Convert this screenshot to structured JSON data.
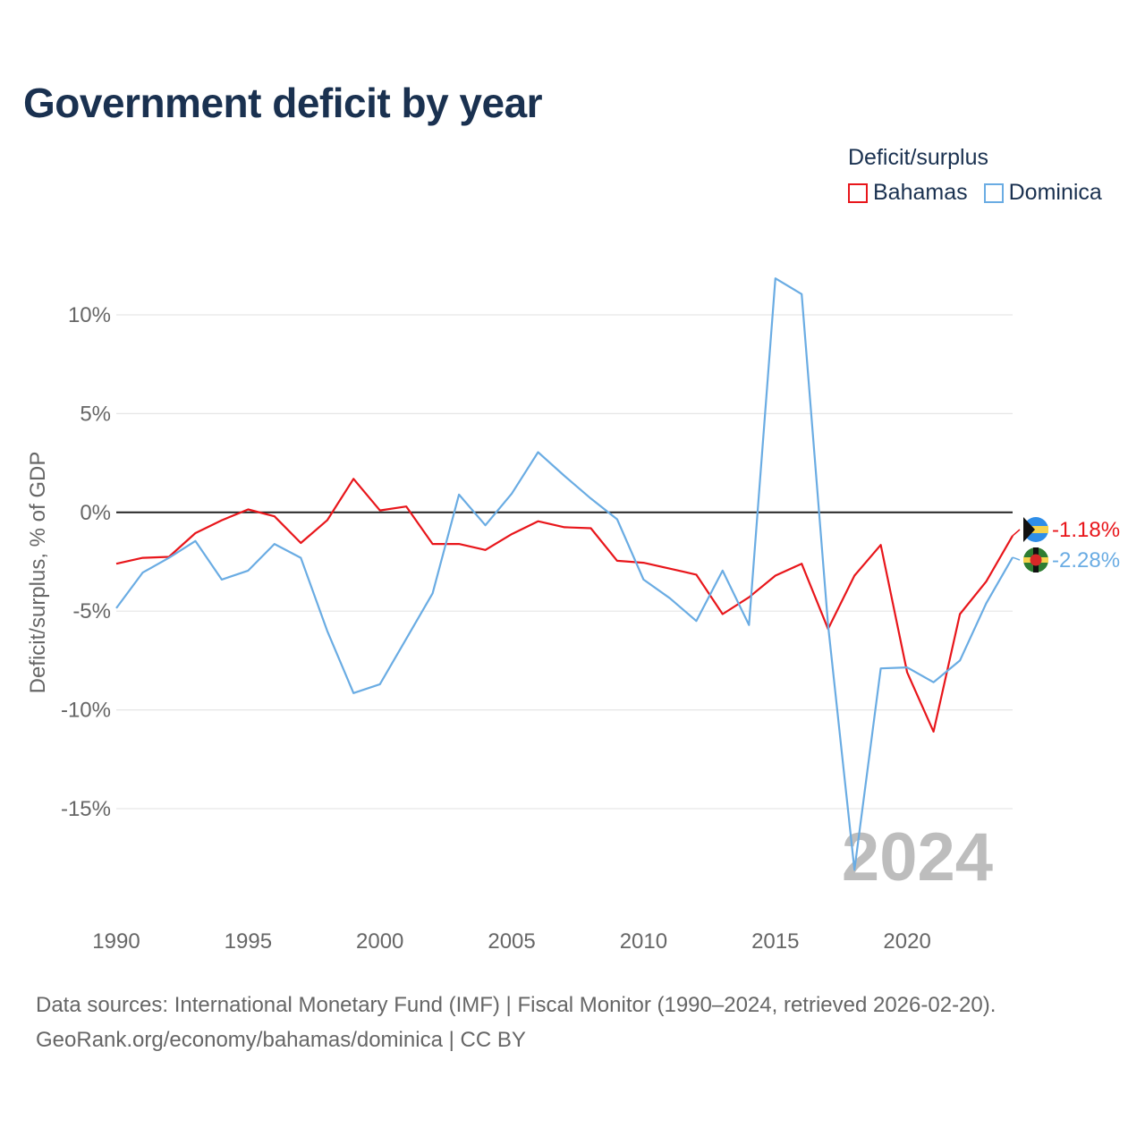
{
  "title": "Government deficit by year",
  "legend": {
    "title": "Deficit/surplus",
    "items": [
      {
        "name": "Bahamas",
        "color": "#e8161b"
      },
      {
        "name": "Dominica",
        "color": "#6aace3"
      }
    ]
  },
  "watermark_year": "2024",
  "footer": {
    "line1": "Data sources: International Monetary Fund (IMF) | Fiscal Monitor (1990–2024, retrieved 2026-02-20).",
    "line2": "GeoRank.org/economy/bahamas/dominica | CC BY"
  },
  "chart_data": {
    "type": "line",
    "title": "Government deficit by year",
    "xlabel": "",
    "ylabel": "Deficit/surplus, % of GDP",
    "xlim": [
      1990,
      2024
    ],
    "ylim": [
      -20,
      13
    ],
    "yticks": [
      10,
      5,
      0,
      -5,
      -10,
      -15
    ],
    "ytick_labels": [
      "10%",
      "5%",
      "0%",
      "-5%",
      "-10%",
      "-15%"
    ],
    "xticks": [
      1990,
      1995,
      2000,
      2005,
      2010,
      2015,
      2020
    ],
    "xtick_labels": [
      "1990",
      "1995",
      "2000",
      "2005",
      "2010",
      "2015",
      "2020"
    ],
    "x": [
      1990,
      1991,
      1992,
      1993,
      1994,
      1995,
      1996,
      1997,
      1998,
      1999,
      2000,
      2001,
      2002,
      2003,
      2004,
      2005,
      2006,
      2007,
      2008,
      2009,
      2010,
      2011,
      2012,
      2013,
      2014,
      2015,
      2016,
      2017,
      2018,
      2019,
      2020,
      2021,
      2022,
      2023,
      2024
    ],
    "series": [
      {
        "name": "Bahamas",
        "color": "#e8161b",
        "end_label": "-1.18%",
        "values": [
          -2.6,
          -2.3,
          -2.25,
          -1.05,
          -0.4,
          0.15,
          -0.2,
          -1.55,
          -0.4,
          1.7,
          0.1,
          0.3,
          -1.6,
          -1.6,
          -1.9,
          -1.1,
          -0.45,
          -0.75,
          -0.8,
          -2.45,
          -2.55,
          -2.85,
          -3.15,
          -5.15,
          -4.3,
          -3.2,
          -2.6,
          -5.9,
          -3.2,
          -1.65,
          -8.1,
          -11.1,
          -5.15,
          -3.5,
          -1.18
        ]
      },
      {
        "name": "Dominica",
        "color": "#6aace3",
        "end_label": "-2.28%",
        "values": [
          -4.85,
          -3.05,
          -2.3,
          -1.45,
          -3.4,
          -2.95,
          -1.6,
          -2.3,
          -6.0,
          -9.15,
          -8.7,
          -6.4,
          -4.1,
          0.9,
          -0.65,
          0.95,
          3.05,
          1.85,
          0.7,
          -0.35,
          -3.4,
          -4.35,
          -5.5,
          -2.95,
          -5.7,
          11.85,
          11.05,
          -5.7,
          -18.1,
          -7.9,
          -7.85,
          -8.6,
          -7.5,
          -4.6,
          -2.28
        ]
      }
    ]
  }
}
